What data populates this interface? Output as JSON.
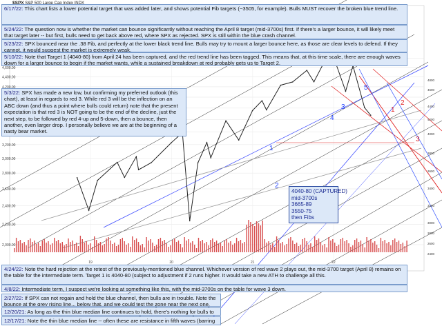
{
  "header": {
    "symbol": "$SPX",
    "name": "S&P 500 Large Cap Index",
    "exchange": "INDX"
  },
  "notes": [
    {
      "date": "6/17/22:",
      "text": "This chart lists a lower potential target that was added later, and shows potential Fib targets (~3505, for example).  Bulls MUST recover the broken blue trend line."
    },
    {
      "date": "5/24/22:",
      "text": "The question now is whether the market can bounce significantly without reaching the April 8 target (mid-3700s) first.  If there's a larger bounce, it will likely meet that target later -- but first, bulls need to get back above red, where SPX as rejected.  SPX is still within the blue crash channel."
    },
    {
      "date": "5/23/22:",
      "text": "SPX bounced near the .38 Fib, and perfectly at the lower black trend line.  Bulls may try to mount a larger bounce here, as those are clear levels to defend.  If they cannot, it would suggest the market is extremely weak."
    },
    {
      "date": "5/10/22:",
      "text": "Note that Target 1 (4040-80) from April 24 has been captured, and the red trend line has been tagged.  This means that, at this time scale, there are enough waves down for a larger bounce to begin if the market wants, while a sustained breakdown at red probably gets us to Target 2."
    },
    {
      "date": "5/3/22:",
      "text": "SPX has made a new low, but confirming my preferred outlook (this chart), at least in regards to red 3.  While red 3 will be the inflection on an ABC down (and thus a point where bulls could return) note that the present expectation is that red 3 is NOT going to be the end of the decline, just the next step, to be followed by red 4-up and 5-down, then a bounce, then another, even larger drop.  I personally believe we are at the beginning of a nasty bear market."
    },
    {
      "date": "4/24/22:",
      "text": "Note the hard rejection at the retest of the previously-mentioned blue channel.  Whichever version of red wave 2 plays out, the mid-3700 target (April 8) remains on the table for the intermediate term.  Target 1 is 4040-80 (subject to adjustment if 2 runs higher.  It would take a new ATH to challenge all this."
    },
    {
      "date": "4/8/22:",
      "text": "Intermediate term, I suspect we're looking at something like this, with the mid-3700s on the table for wave 3 down."
    },
    {
      "date": "2/27/22:",
      "text": "If SPX can not regain and hold the blue channel, then bulls are in trouble.  Note the bounce at the grey rising line... below that, and we could test the zone near the next one."
    },
    {
      "date": "12/20/21:",
      "text": "As long as the thin blue median line continues to hold, there's nothing for bulls to get excited about."
    },
    {
      "date": "12/17/21:",
      "text": "Note the thin blue median line -- often these are resistance in fifth waves (barring extensions)."
    }
  ],
  "targets": [
    "4040-80 (CAPTURED)",
    "mid-3700s",
    "3665-89",
    "3550-75",
    "then Fibs"
  ],
  "wave_labels": {
    "blue": [
      "1",
      "2",
      "3",
      "4",
      "5"
    ],
    "red": [
      "1",
      "2",
      "3"
    ]
  },
  "chart_data": {
    "type": "line",
    "title": "$SPX S&P 500 Large Cap Index",
    "ylabel": "",
    "xlabel": "",
    "scale": "log",
    "ylim": [
      2000,
      5200
    ],
    "y_ticks": [
      2000,
      2200,
      2400,
      2600,
      2800,
      3000,
      3200,
      3400,
      3600,
      3800,
      4000,
      4200,
      4400,
      4600,
      4800
    ],
    "x_tick_labels": [
      "19",
      "20",
      "21",
      "22"
    ],
    "series": [
      {
        "name": "",
        "values": [
          [
            "2018-11-01",
            2740
          ],
          [
            "2018-12-24",
            2351
          ],
          [
            "2019-02-01",
            2706
          ],
          [
            "2019-05-01",
            2945
          ],
          [
            "2019-06-03",
            2744
          ],
          [
            "2019-07-26",
            3025
          ],
          [
            "2019-08-05",
            2844
          ],
          [
            "2019-10-01",
            2940
          ],
          [
            "2019-12-31",
            3230
          ],
          [
            "2020-02-19",
            3386
          ],
          [
            "2020-03-23",
            2237
          ],
          [
            "2020-04-29",
            2939
          ],
          [
            "2020-06-08",
            3232
          ],
          [
            "2020-06-26",
            3009
          ],
          [
            "2020-09-02",
            3580
          ],
          [
            "2020-10-30",
            3270
          ],
          [
            "2020-12-31",
            3756
          ],
          [
            "2021-02-12",
            3934
          ],
          [
            "2021-03-04",
            3768
          ],
          [
            "2021-05-07",
            4232
          ],
          [
            "2021-06-30",
            4297
          ],
          [
            "2021-09-02",
            4537
          ],
          [
            "2021-10-04",
            4300
          ],
          [
            "2021-11-18",
            4704
          ],
          [
            "2022-01-03",
            4796
          ],
          [
            "2022-02-24",
            4114
          ],
          [
            "2022-03-29",
            4637
          ],
          [
            "2022-05-20",
            3810
          ],
          [
            "2022-06-17",
            3675
          ]
        ]
      }
    ],
    "legend": "none",
    "grid": true
  }
}
